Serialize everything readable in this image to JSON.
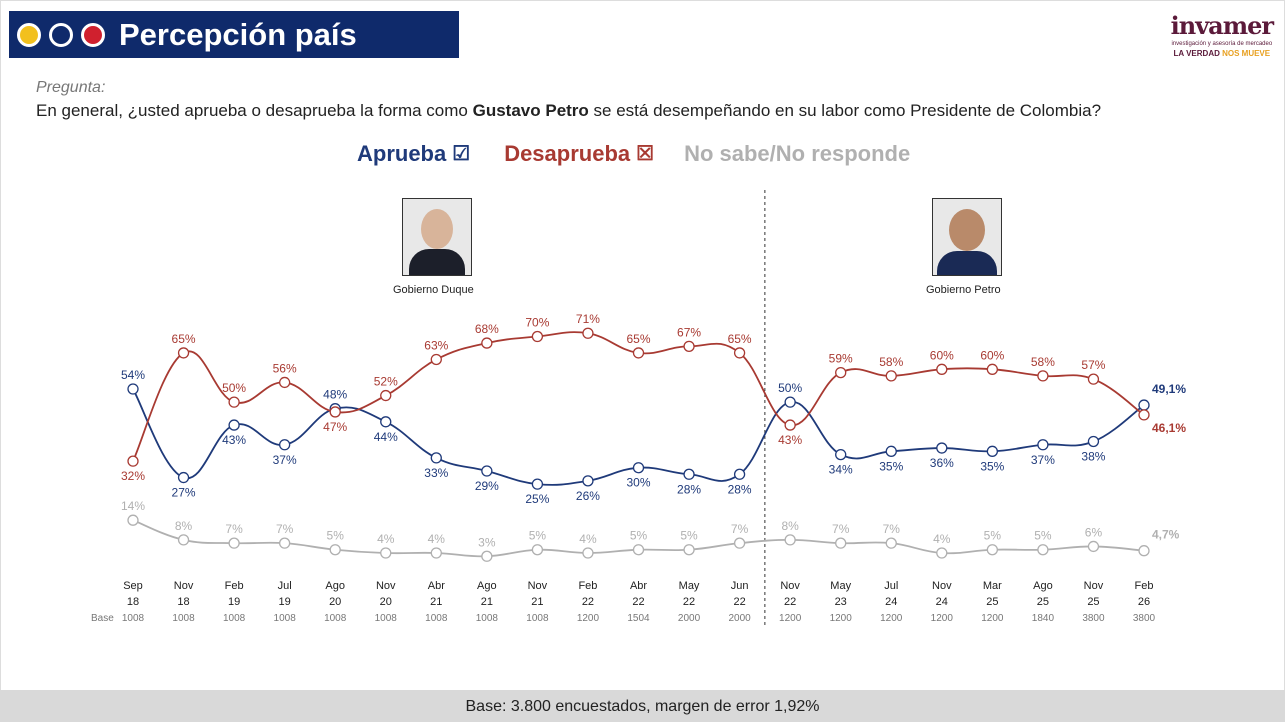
{
  "header": {
    "title": "Percepción país",
    "dot_colors": [
      "#f2c01e",
      "#0f2a6b",
      "#d0202e"
    ]
  },
  "logo": {
    "name": "invamer",
    "subtitle": "investigación y asesoría de mercadeo",
    "tagline_a": "LA VERDAD ",
    "tagline_b": "NOS MUEVE"
  },
  "question": {
    "label": "Pregunta:",
    "text_a": "En general, ¿usted aprueba o desaprueba la forma como ",
    "text_bold": "Gustavo Petro",
    "text_b": " se está desempeñando en su labor como Presidente de Colombia?"
  },
  "legend": {
    "approve": "Aprueba",
    "disapprove": "Desaprueba",
    "nsnr": "No sabe/No responde"
  },
  "periods": {
    "duque": "Gobierno Duque",
    "petro": "Gobierno Petro"
  },
  "footer": "Base: 3.800 encuestados, margen de error 1,92%",
  "chart_data": {
    "type": "line",
    "categories": [
      [
        "Sep",
        "18"
      ],
      [
        "Nov",
        "18"
      ],
      [
        "Feb",
        "19"
      ],
      [
        "Jul",
        "19"
      ],
      [
        "Ago",
        "20"
      ],
      [
        "Nov",
        "20"
      ],
      [
        "Abr",
        "21"
      ],
      [
        "Ago",
        "21"
      ],
      [
        "Nov",
        "21"
      ],
      [
        "Feb",
        "22"
      ],
      [
        "Abr",
        "22"
      ],
      [
        "May",
        "22"
      ],
      [
        "Jun",
        "22"
      ],
      [
        "Nov",
        "22"
      ],
      [
        "May",
        "23"
      ],
      [
        "Jul",
        "24"
      ],
      [
        "Nov",
        "24"
      ],
      [
        "Mar",
        "25"
      ],
      [
        "Ago",
        "25"
      ],
      [
        "Nov",
        "25"
      ],
      [
        "Feb",
        "26"
      ]
    ],
    "base_label": "Base",
    "base": [
      "1008",
      "1008",
      "1008",
      "1008",
      "1008",
      "1008",
      "1008",
      "1008",
      "1008",
      "1200",
      "1504",
      "2000",
      "2000",
      "1200",
      "1200",
      "1200",
      "1200",
      "1200",
      "1840",
      "3800",
      "3800"
    ],
    "series": [
      {
        "name": "Aprueba",
        "color": "#1f3a7a",
        "values": [
          54,
          27,
          43,
          37,
          48,
          44,
          33,
          29,
          25,
          26,
          30,
          28,
          28,
          50,
          34,
          35,
          36,
          35,
          37,
          38,
          49.1
        ],
        "labels": [
          "54%",
          "27%",
          "43%",
          "37%",
          "48%",
          "44%",
          "33%",
          "29%",
          "25%",
          "26%",
          "30%",
          "28%",
          "28%",
          "50%",
          "34%",
          "35%",
          "36%",
          "35%",
          "37%",
          "38%",
          "49,1%"
        ]
      },
      {
        "name": "Desaprueba",
        "color": "#a83a32",
        "values": [
          32,
          65,
          50,
          56,
          47,
          52,
          63,
          68,
          70,
          71,
          65,
          67,
          65,
          43,
          59,
          58,
          60,
          60,
          58,
          57,
          46.1
        ],
        "labels": [
          "32%",
          "65%",
          "50%",
          "56%",
          "47%",
          "52%",
          "63%",
          "68%",
          "70%",
          "71%",
          "65%",
          "67%",
          "65%",
          "43%",
          "59%",
          "58%",
          "60%",
          "60%",
          "58%",
          "57%",
          "46,1%"
        ]
      },
      {
        "name": "No sabe/No responde",
        "color": "#b0b0b0",
        "values": [
          14,
          8,
          7,
          7,
          5,
          4,
          4,
          3,
          5,
          4,
          5,
          5,
          7,
          8,
          7,
          7,
          4,
          5,
          5,
          6,
          4.7
        ],
        "labels": [
          "14%",
          "8%",
          "7%",
          "7%",
          "5%",
          "4%",
          "4%",
          "3%",
          "5%",
          "4%",
          "5%",
          "5%",
          "7%",
          "8%",
          "7%",
          "7%",
          "4%",
          "5%",
          "5%",
          "6%",
          "4,7%"
        ]
      }
    ],
    "divider_after": "Jun 22",
    "grid": false
  }
}
